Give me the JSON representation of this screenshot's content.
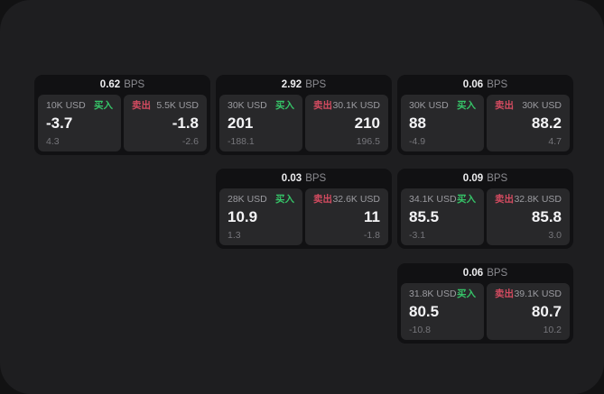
{
  "labels": {
    "bps_unit": "BPS",
    "buy": "买入",
    "sell": "卖出"
  },
  "colors": {
    "panel_bg": "#1e1e20",
    "card_bg": "#111113",
    "subcard_bg": "#28282a",
    "buy_green": "#36c468",
    "sell_red": "#d34b60"
  },
  "cards": [
    {
      "bps": "0.62",
      "buy": {
        "amount": "10K USD",
        "price": "-3.7",
        "delta": "4.3"
      },
      "sell": {
        "amount": "5.5K USD",
        "price": "-1.8",
        "delta": "-2.6"
      }
    },
    {
      "bps": "2.92",
      "buy": {
        "amount": "30K USD",
        "price": "201",
        "delta": "-188.1"
      },
      "sell": {
        "amount": "30.1K USD",
        "price": "210",
        "delta": "196.5"
      }
    },
    {
      "bps": "0.06",
      "buy": {
        "amount": "30K USD",
        "price": "88",
        "delta": "-4.9"
      },
      "sell": {
        "amount": "30K USD",
        "price": "88.2",
        "delta": "4.7"
      }
    },
    {
      "bps": "0.03",
      "buy": {
        "amount": "28K USD",
        "price": "10.9",
        "delta": "1.3"
      },
      "sell": {
        "amount": "32.6K USD",
        "price": "11",
        "delta": "-1.8"
      }
    },
    {
      "bps": "0.09",
      "buy": {
        "amount": "34.1K USD",
        "price": "85.5",
        "delta": "-3.1"
      },
      "sell": {
        "amount": "32.8K USD",
        "price": "85.8",
        "delta": "3.0"
      }
    },
    {
      "bps": "0.06",
      "buy": {
        "amount": "31.8K USD",
        "price": "80.5",
        "delta": "-10.8"
      },
      "sell": {
        "amount": "39.1K USD",
        "price": "80.7",
        "delta": "10.2"
      }
    }
  ]
}
